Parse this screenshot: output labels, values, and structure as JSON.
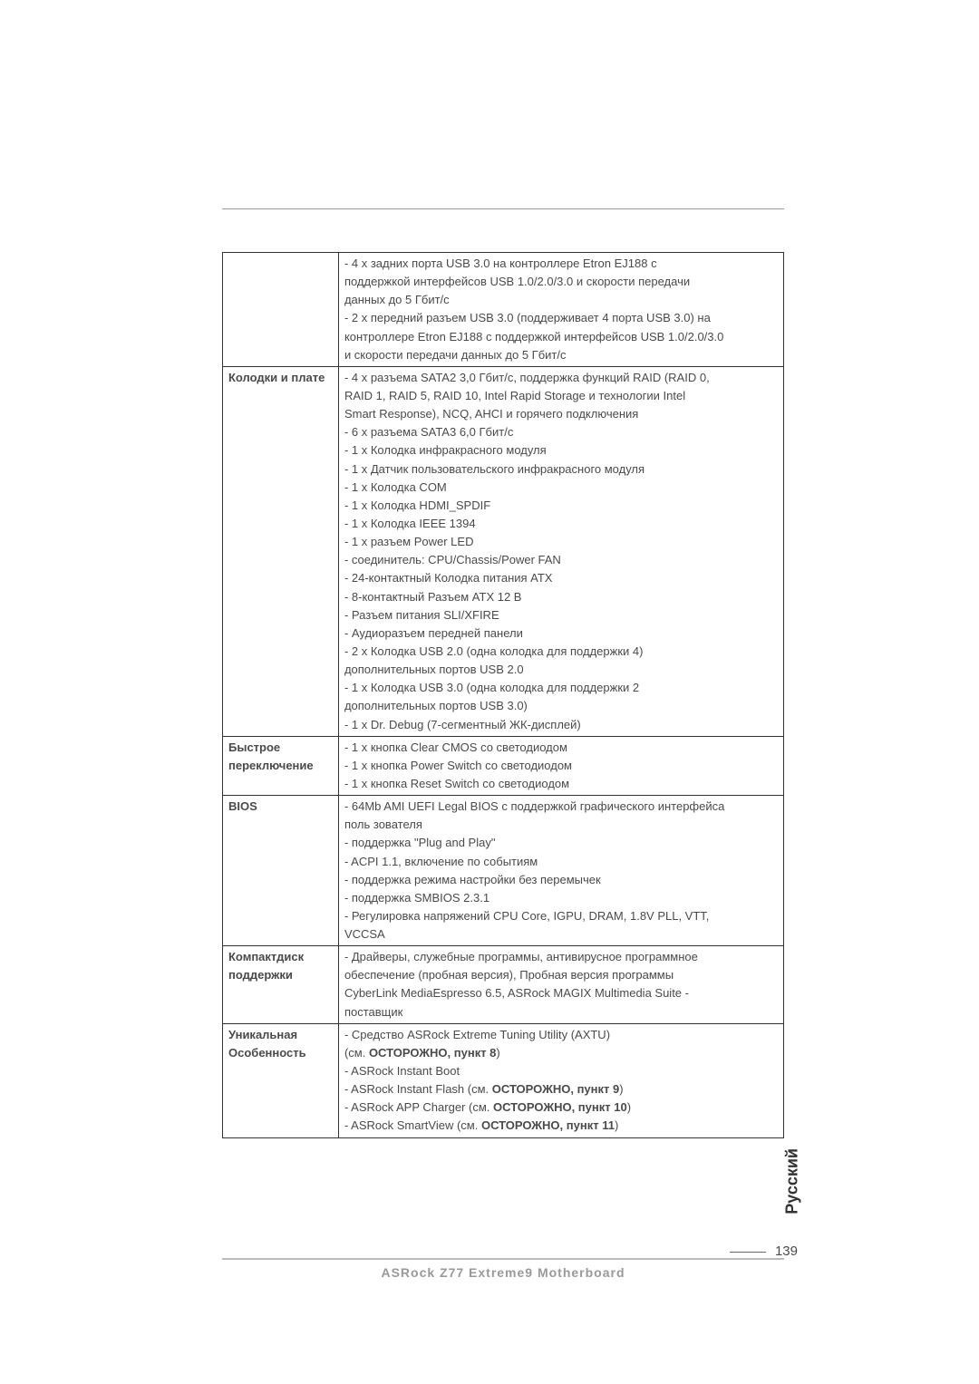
{
  "page": {
    "footer_text": "ASRock  Z77 Extreme9  Motherboard",
    "page_number": "139",
    "side_label": "Русский"
  },
  "spec_rows": [
    {
      "label": "",
      "lines": [
        "- 4 x задних порта USB 3.0 на контроллере Etron EJ188 с",
        "  поддержкой интерфейсов USB 1.0/2.0/3.0 и скорости передачи",
        "  данных до 5 Гбит/с",
        "- 2 x передний разъем USB 3.0 (поддерживает 4 порта USB 3.0) на",
        "  контроллере Etron EJ188 с поддержкой интерфейсов USB 1.0/2.0/3.0",
        "  и скорости передачи данных до 5 Гбит/с"
      ]
    },
    {
      "label": "Колодки и плате",
      "lines": [
        "- 4 x разъема SATA2 3,0 Гбит/с, поддержка функций RAID (RAID 0,",
        "  RAID 1, RAID 5, RAID 10, Intel Rapid Storage и технологии Intel",
        "  Smart Response), NCQ, AHCI и горячего подключения",
        "- 6 x разъема SATA3 6,0 Гбит/с",
        "- 1 x Колодка инфракрасного модуля",
        "- 1 x Датчик пользовательского инфракрасного модуля",
        "- 1 x Колодка COM",
        "- 1 x Колодка HDMI_SPDIF",
        "- 1 x Колодка IEEE 1394",
        "- 1 x разъем Power LED",
        "- соединитель: CPU/Chassis/Power FAN",
        "- 24-контактный Колодка питания ATX",
        "- 8-контактный Разъем ATX 12 В",
        "- Разъем питания SLI/XFIRE",
        "- Аудиоразъем передней панели",
        "- 2 x Колодка USB 2.0 (одна колодка для поддержки 4)",
        "  дополнительных портов USB 2.0",
        "- 1 x Колодка USB 3.0 (одна колодка для поддержки 2",
        "  дополнительных портов USB 3.0)",
        "- 1 x Dr. Debug (7-сегментный ЖК-дисплей)"
      ]
    },
    {
      "label": "Быстрое переключение",
      "lines": [
        "- 1 x кнопка Clear CMOS со светодиодом",
        "- 1 x кнопка Power Switch со светодиодом",
        "- 1 x кнопка Reset Switch со светодиодом"
      ]
    },
    {
      "label": "BIOS",
      "lines": [
        "- 64Mb AMI UEFI Legal BIOS с поддержкой графического интерфейса",
        "  поль зователя",
        "- поддержка \"Plug and Play\"",
        "- ACPI 1.1, включение по событиям",
        "- поддержка режима настройки без перемычек",
        "- поддержка SMBIOS 2.3.1",
        "- Регулировка напряжений CPU Core, IGPU, DRAM, 1.8V PLL, VTT,",
        "  VCCSA"
      ]
    },
    {
      "label": "Компактдиск поддержки",
      "lines": [
        "- Драйверы, служебные программы, антивирусное программное",
        "  обеспечение (пробная версия), Пробная версия программы",
        "  CyberLink MediaEspresso 6.5, ASRock MAGIX Multimedia Suite -",
        "  поставщик"
      ]
    },
    {
      "label": "Уникальная Особенность",
      "lines_rich": [
        [
          {
            "t": "- Средство ASRock Extreme Tuning Utility (AXTU)"
          }
        ],
        [
          {
            "t": "  (см. "
          },
          {
            "t": "ОСТОРОЖНО, пункт 8",
            "bold": true
          },
          {
            "t": ")"
          }
        ],
        [
          {
            "t": "- ASRock Instant Boot"
          }
        ],
        [
          {
            "t": "- ASRock Instant Flash (см. "
          },
          {
            "t": "ОСТОРОЖНО, пункт 9",
            "bold": true
          },
          {
            "t": ")"
          }
        ],
        [
          {
            "t": "- ASRock APP Charger (см. "
          },
          {
            "t": "ОСТОРОЖНО, пункт 10",
            "bold": true
          },
          {
            "t": ")"
          }
        ],
        [
          {
            "t": "- ASRock SmartView (см. "
          },
          {
            "t": "ОСТОРОЖНО, пункт 11",
            "bold": true
          },
          {
            "t": ")"
          }
        ]
      ]
    }
  ]
}
